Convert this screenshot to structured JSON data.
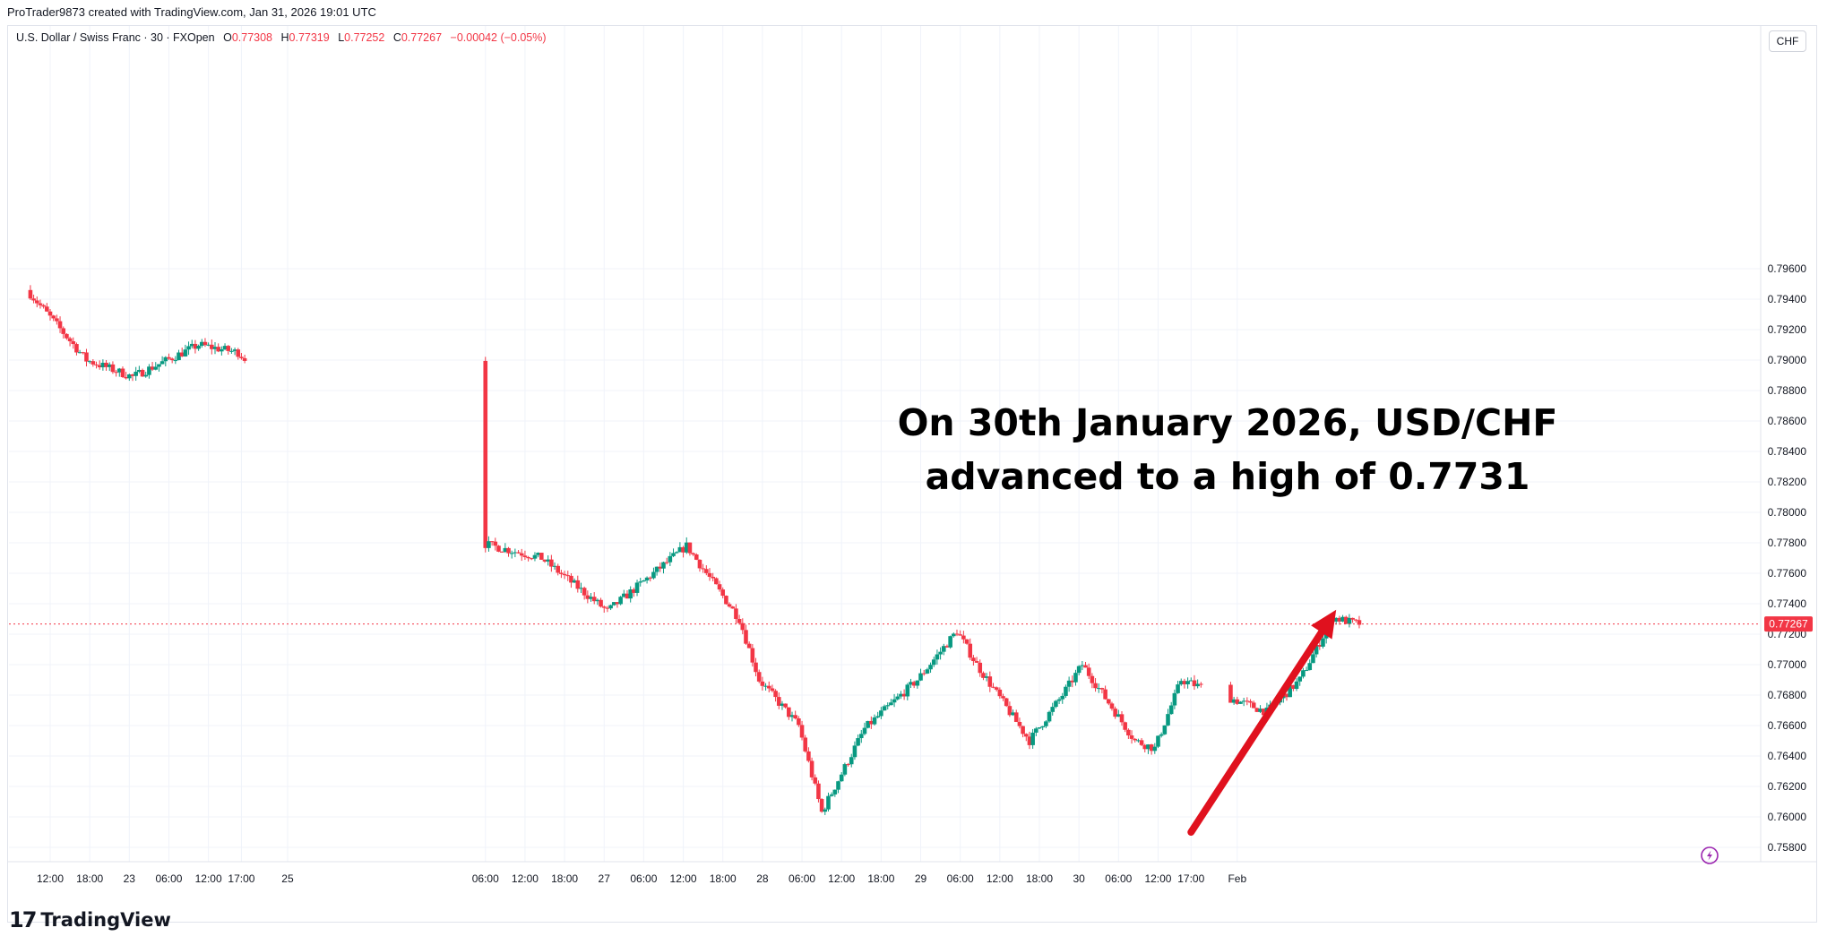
{
  "header": {
    "attribution": "ProTrader9873 created with TradingView.com, Jan 31, 2026 19:01 UTC"
  },
  "legend": {
    "symbol": "U.S. Dollar / Swiss Franc · 30 · FXOpen",
    "open_label": "O",
    "open": "0.77308",
    "high_label": "H",
    "high": "0.77319",
    "low_label": "L",
    "low": "0.77252",
    "close_label": "C",
    "close": "0.77267",
    "change": "−0.00042 (−0.05%)"
  },
  "currency_button": "CHF",
  "annotation": "On 30th January 2026, USD/CHF advanced to a high of 0.7731",
  "brand": {
    "logo_text": "17",
    "name": "TradingView"
  },
  "colors": {
    "up": "#089981",
    "down": "#f23645",
    "arrow": "#e0111e",
    "price_line": "#f23645"
  },
  "chart_data": {
    "type": "candlestick",
    "interval_minutes": 30,
    "y_axis": {
      "min": 0.758,
      "max": 0.796,
      "step": 0.002,
      "ticks": [
        "0.79600",
        "0.79400",
        "0.79200",
        "0.79000",
        "0.78800",
        "0.78600",
        "0.78400",
        "0.78200",
        "0.78000",
        "0.77800",
        "0.77600",
        "0.77400",
        "0.77200",
        "0.77000",
        "0.76800",
        "0.76600",
        "0.76400",
        "0.76200",
        "0.76000",
        "0.75800"
      ]
    },
    "x_ticks": [
      "12:00",
      "18:00",
      "23",
      "06:00",
      "12:00",
      "17:00",
      "25",
      "06:00",
      "12:00",
      "18:00",
      "27",
      "06:00",
      "12:00",
      "18:00",
      "28",
      "06:00",
      "12:00",
      "18:00",
      "29",
      "06:00",
      "12:00",
      "18:00",
      "30",
      "06:00",
      "12:00",
      "17:00",
      "Feb"
    ],
    "last_price": 0.77267,
    "last_price_label": "0.77267",
    "key_points": [
      {
        "t": "Jan 22 09:00",
        "price": 0.7946
      },
      {
        "t": "Jan 22 18:00",
        "price": 0.79
      },
      {
        "t": "Jan 23 01:00",
        "price": 0.7889
      },
      {
        "t": "Jan 23 11:00",
        "price": 0.791
      },
      {
        "t": "Jan 23 17:00",
        "price": 0.7905
      },
      {
        "t": "Jan 25 22:00",
        "price": 0.779
      },
      {
        "t": "Jan 26 00:00",
        "price": 0.774
      },
      {
        "t": "Jan 26 01:00",
        "price": 0.7785
      },
      {
        "t": "Jan 26 15:00",
        "price": 0.777
      },
      {
        "t": "Jan 27 01:00",
        "price": 0.7735
      },
      {
        "t": "Jan 27 13:00",
        "price": 0.7778
      },
      {
        "t": "Jan 27 21:00",
        "price": 0.773
      },
      {
        "t": "Jan 28 00:00",
        "price": 0.769
      },
      {
        "t": "Jan 28 06:00",
        "price": 0.766
      },
      {
        "t": "Jan 28 09:30",
        "price": 0.7603
      },
      {
        "t": "Jan 28 16:00",
        "price": 0.7658
      },
      {
        "t": "Jan 29 00:00",
        "price": 0.769
      },
      {
        "t": "Jan 29 06:00",
        "price": 0.7722
      },
      {
        "t": "Jan 29 09:00",
        "price": 0.77
      },
      {
        "t": "Jan 29 17:00",
        "price": 0.765
      },
      {
        "t": "Jan 29 22:00",
        "price": 0.768
      },
      {
        "t": "Jan 30 01:00",
        "price": 0.77
      },
      {
        "t": "Jan 30 09:00",
        "price": 0.765
      },
      {
        "t": "Jan 30 12:00",
        "price": 0.7645
      },
      {
        "t": "Jan 30 16:00",
        "price": 0.769
      },
      {
        "t": "Jan 31 05:00",
        "price": 0.7669
      },
      {
        "t": "Jan 31 10:00",
        "price": 0.769
      },
      {
        "t": "Jan 31 15:00",
        "price": 0.7731
      },
      {
        "t": "Jan 31 18:30",
        "price": 0.7727
      }
    ],
    "trend_arrow": {
      "from": {
        "t": "Jan 30 17:00",
        "price": 0.759
      },
      "to": {
        "t": "Jan 31 15:00",
        "price": 0.7736
      }
    }
  }
}
